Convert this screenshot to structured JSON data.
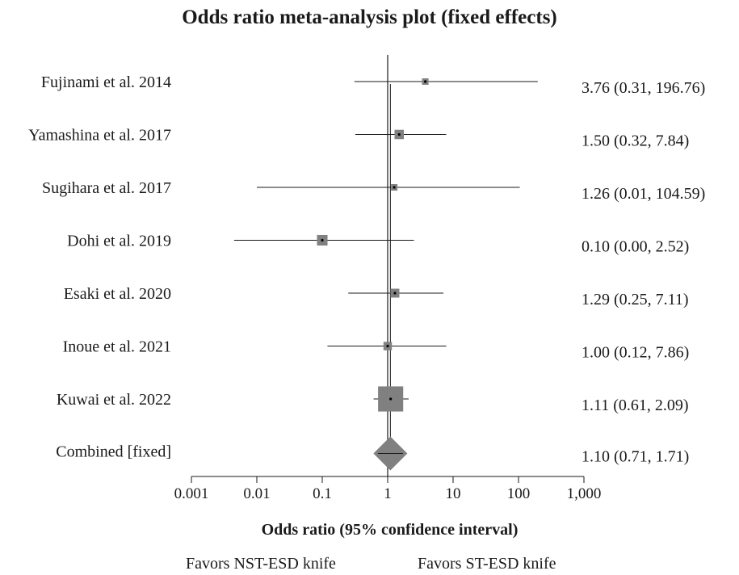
{
  "chart_data": {
    "type": "forest",
    "title": "Odds ratio meta-analysis plot (fixed effects)",
    "xlabel": "Odds ratio (95% confidence interval)",
    "x_scale": "log",
    "xlim": [
      0.001,
      1000
    ],
    "x_ticks": [
      "0.001",
      "0.01",
      "0.1",
      "1",
      "10",
      "100",
      "1,000"
    ],
    "reference_line": 1,
    "studies": [
      {
        "label": "Fujinami et al. 2014",
        "or": 3.76,
        "lower": 0.31,
        "upper": 196.76,
        "estimate_text": "3.76 (0.31, 196.76)",
        "weight": 0.5
      },
      {
        "label": "Yamashina et al. 2017",
        "or": 1.5,
        "lower": 0.32,
        "upper": 7.84,
        "estimate_text": "1.50 (0.32, 7.84)",
        "weight": 1.1
      },
      {
        "label": "Sugihara et al. 2017",
        "or": 1.26,
        "lower": 0.01,
        "upper": 104.59,
        "estimate_text": "1.26 (0.01, 104.59)",
        "weight": 0.5
      },
      {
        "label": "Dohi et al. 2019",
        "or": 0.1,
        "lower": 0.0045,
        "upper": 2.52,
        "estimate_text": "0.10 (0.00, 2.52)",
        "weight": 1.4
      },
      {
        "label": "Esaki et al. 2020",
        "or": 1.29,
        "lower": 0.25,
        "upper": 7.11,
        "estimate_text": "1.29 (0.25, 7.11)",
        "weight": 1.0
      },
      {
        "label": "Inoue et al. 2021",
        "or": 1.0,
        "lower": 0.12,
        "upper": 7.86,
        "estimate_text": "1.00 (0.12, 7.86)",
        "weight": 0.9
      },
      {
        "label": "Kuwai et al. 2022",
        "or": 1.11,
        "lower": 0.61,
        "upper": 2.09,
        "estimate_text": "1.11 (0.61, 2.09)",
        "weight": 8.0
      }
    ],
    "combined": {
      "label": "Combined [fixed]",
      "or": 1.1,
      "lower": 0.71,
      "upper": 1.71,
      "estimate_text": "1.10 (0.71, 1.71)"
    },
    "favors_left": "Favors NST-ESD knife",
    "favors_right": "Favors ST-ESD knife",
    "colors": {
      "box": "#808080",
      "line": "#1a1a1a",
      "diamond": "#808080"
    }
  }
}
